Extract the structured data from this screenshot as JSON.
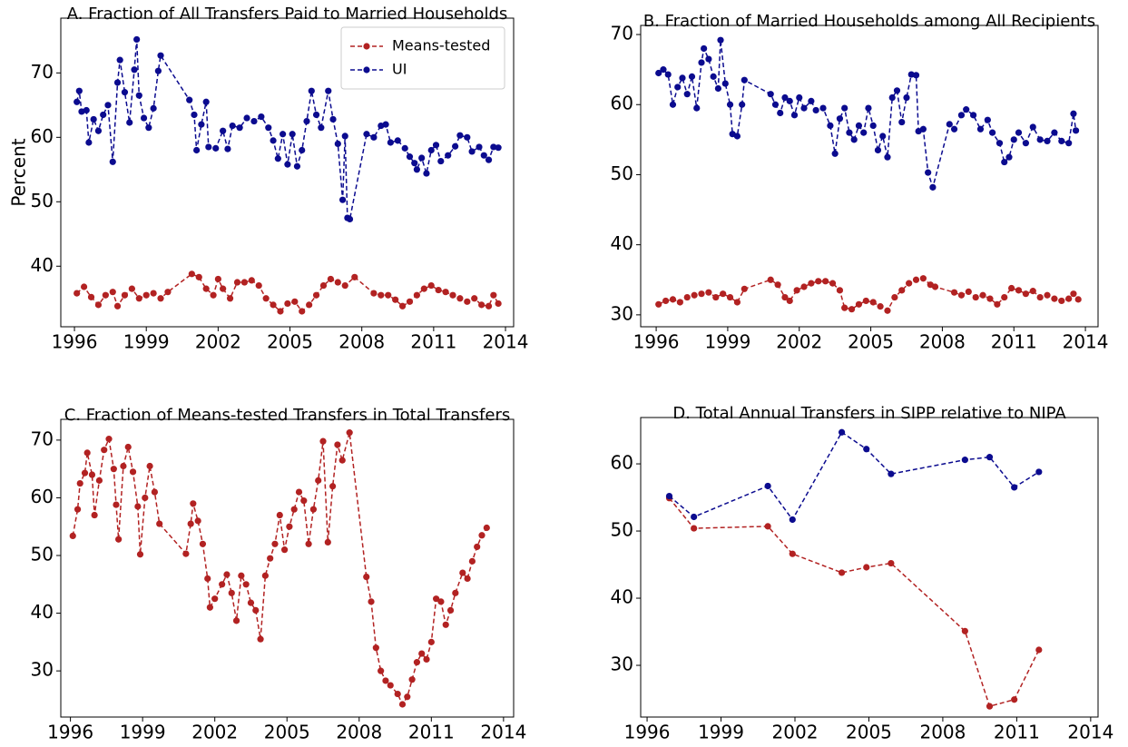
{
  "chart_data": [
    {
      "type": "line",
      "title": "A. Fraction of All Transfers Paid to Married Households",
      "y_label": "Percent",
      "xlim": [
        1995.43,
        2014.34
      ],
      "xticks": [
        1996,
        1999,
        2002,
        2005,
        2008,
        2011,
        2014
      ],
      "ylim": [
        30.6,
        78.5
      ],
      "yticks": [
        40,
        50,
        60,
        70
      ],
      "legend": "upper right",
      "line_style": "dashed",
      "markers": true,
      "series": [
        {
          "name": "Means-tested",
          "color": "#b22222",
          "x": [
            1996.1,
            1996.4,
            1996.7,
            1997.0,
            1997.3,
            1997.6,
            1997.8,
            1998.1,
            1998.4,
            1998.7,
            1999.0,
            1999.3,
            1999.6,
            1999.9,
            2000.9,
            2001.2,
            2001.5,
            2001.8,
            2002.0,
            2002.2,
            2002.5,
            2002.8,
            2003.1,
            2003.4,
            2003.7,
            2004.0,
            2004.3,
            2004.6,
            2004.9,
            2005.2,
            2005.5,
            2005.8,
            2006.1,
            2006.4,
            2006.7,
            2007.0,
            2007.3,
            2007.7,
            2008.5,
            2008.8,
            2009.1,
            2009.4,
            2009.7,
            2010.0,
            2010.3,
            2010.6,
            2010.9,
            2011.2,
            2011.5,
            2011.8,
            2012.1,
            2012.4,
            2012.7,
            2013.0,
            2013.3,
            2013.5,
            2013.7
          ],
          "values": [
            35.8,
            36.8,
            35.2,
            34,
            35.5,
            36,
            33.8,
            35.5,
            36.5,
            35,
            35.5,
            35.8,
            35,
            36,
            38.8,
            38.3,
            36.5,
            35.5,
            38,
            36.5,
            35,
            37.5,
            37.5,
            37.8,
            37,
            35,
            34,
            33,
            34.2,
            34.5,
            33,
            34,
            35.5,
            37,
            38,
            37.5,
            37,
            38.3,
            35.8,
            35.5,
            35.5,
            34.8,
            33.8,
            34.5,
            35.5,
            36.5,
            37,
            36.3,
            36,
            35.5,
            35,
            34.5,
            35,
            34,
            33.8,
            35.5,
            34.2
          ]
        },
        {
          "name": "UI",
          "color": "#0b0b8f",
          "x": [
            1996.1,
            1996.2,
            1996.3,
            1996.5,
            1996.6,
            1996.8,
            1997.0,
            1997.2,
            1997.4,
            1997.6,
            1997.8,
            1997.9,
            1998.1,
            1998.3,
            1998.5,
            1998.6,
            1998.7,
            1998.9,
            1999.1,
            1999.3,
            1999.5,
            1999.6,
            2000.8,
            2001.0,
            2001.1,
            2001.3,
            2001.5,
            2001.6,
            2001.9,
            2002.2,
            2002.4,
            2002.6,
            2002.9,
            2003.2,
            2003.5,
            2003.8,
            2004.1,
            2004.3,
            2004.5,
            2004.7,
            2004.9,
            2005.1,
            2005.3,
            2005.5,
            2005.7,
            2005.9,
            2006.1,
            2006.3,
            2006.6,
            2006.8,
            2007.0,
            2007.2,
            2007.3,
            2007.4,
            2007.5,
            2008.2,
            2008.5,
            2008.8,
            2009.0,
            2009.2,
            2009.5,
            2009.8,
            2010.0,
            2010.2,
            2010.3,
            2010.5,
            2010.7,
            2010.9,
            2011.1,
            2011.3,
            2011.6,
            2011.9,
            2012.1,
            2012.4,
            2012.6,
            2012.9,
            2013.1,
            2013.3,
            2013.5,
            2013.7
          ],
          "values": [
            65.5,
            67.2,
            64,
            64.2,
            59.2,
            62.8,
            61,
            63.5,
            65,
            56.2,
            68.5,
            72,
            67,
            62.3,
            70.5,
            75.2,
            66.5,
            63,
            61.5,
            64.5,
            70.3,
            72.7,
            65.8,
            63.5,
            58,
            62,
            65.5,
            58.5,
            58.3,
            61,
            58.2,
            61.8,
            61.5,
            63,
            62.5,
            63.2,
            61.5,
            59.5,
            56.7,
            60.5,
            55.8,
            60.5,
            55.5,
            58,
            62.5,
            67.2,
            63.5,
            61.5,
            67.2,
            62.8,
            59,
            50.3,
            60.2,
            47.5,
            47.3,
            60.5,
            60,
            61.8,
            62,
            59.2,
            59.5,
            58.3,
            57,
            56,
            55,
            56.8,
            54.4,
            58,
            58.8,
            56.3,
            57.2,
            58.6,
            60.3,
            60,
            57.8,
            58.5,
            57.2,
            56.5,
            58.5,
            58.4
          ]
        }
      ]
    },
    {
      "type": "line",
      "title": "B. Fraction of Married Households among All Recipients",
      "xlim": [
        1995.35,
        2014.53
      ],
      "xticks": [
        1996,
        1999,
        2002,
        2005,
        2008,
        2011,
        2014
      ],
      "ylim": [
        28.3,
        71.3
      ],
      "yticks": [
        30,
        40,
        50,
        60,
        70
      ],
      "line_style": "dashed",
      "markers": true,
      "series": [
        {
          "color": "#b22222",
          "x": [
            1996.1,
            1996.4,
            1996.7,
            1997.0,
            1997.3,
            1997.6,
            1997.9,
            1998.2,
            1998.5,
            1998.8,
            1999.1,
            1999.4,
            1999.7,
            2000.8,
            2001.1,
            2001.4,
            2001.6,
            2001.9,
            2002.2,
            2002.5,
            2002.8,
            2003.1,
            2003.4,
            2003.7,
            2003.9,
            2004.2,
            2004.5,
            2004.8,
            2005.1,
            2005.4,
            2005.7,
            2006.0,
            2006.3,
            2006.6,
            2006.9,
            2007.2,
            2007.5,
            2007.7,
            2008.5,
            2008.8,
            2009.1,
            2009.4,
            2009.7,
            2010.0,
            2010.3,
            2010.6,
            2010.9,
            2011.2,
            2011.5,
            2011.8,
            2012.1,
            2012.4,
            2012.7,
            2013.0,
            2013.3,
            2013.5,
            2013.7
          ],
          "values": [
            31.5,
            32,
            32.2,
            31.8,
            32.5,
            32.8,
            33,
            33.2,
            32.5,
            33,
            32.5,
            31.8,
            33.7,
            35,
            34.3,
            32.5,
            32,
            33.5,
            34,
            34.5,
            34.8,
            34.8,
            34.5,
            33.5,
            31,
            30.8,
            31.5,
            32,
            31.8,
            31.2,
            30.6,
            32.5,
            33.5,
            34.5,
            35,
            35.2,
            34.3,
            34,
            33.2,
            32.8,
            33.3,
            32.5,
            32.8,
            32.3,
            31.5,
            32.5,
            33.8,
            33.5,
            33,
            33.4,
            32.5,
            32.8,
            32.3,
            32,
            32.3,
            33,
            32.2
          ]
        },
        {
          "color": "#0b0b8f",
          "x": [
            1996.1,
            1996.3,
            1996.5,
            1996.7,
            1996.9,
            1997.1,
            1997.3,
            1997.5,
            1997.7,
            1997.9,
            1998.0,
            1998.2,
            1998.4,
            1998.6,
            1998.7,
            1998.9,
            1999.1,
            1999.2,
            1999.4,
            1999.6,
            1999.7,
            2000.8,
            2001.0,
            2001.2,
            2001.4,
            2001.6,
            2001.8,
            2002.0,
            2002.2,
            2002.5,
            2002.7,
            2003.0,
            2003.3,
            2003.5,
            2003.7,
            2003.9,
            2004.1,
            2004.3,
            2004.5,
            2004.7,
            2004.9,
            2005.1,
            2005.3,
            2005.5,
            2005.7,
            2005.9,
            2006.1,
            2006.3,
            2006.5,
            2006.7,
            2006.9,
            2007.0,
            2007.2,
            2007.4,
            2007.6,
            2008.3,
            2008.5,
            2008.8,
            2009.0,
            2009.3,
            2009.6,
            2009.9,
            2010.1,
            2010.4,
            2010.6,
            2010.8,
            2011.0,
            2011.2,
            2011.5,
            2011.8,
            2012.1,
            2012.4,
            2012.7,
            2013.0,
            2013.3,
            2013.5,
            2013.6
          ],
          "values": [
            64.5,
            65,
            64.3,
            60,
            62.5,
            63.8,
            61.5,
            64,
            59.5,
            66,
            68,
            66.5,
            64,
            62.3,
            69.2,
            63,
            60,
            55.8,
            55.5,
            60,
            63.5,
            61.5,
            60,
            58.8,
            61,
            60.5,
            58.5,
            61,
            59.5,
            60.5,
            59.2,
            59.5,
            57,
            53,
            58,
            59.5,
            56,
            55,
            57,
            56,
            59.5,
            57,
            53.5,
            55.5,
            52.5,
            61,
            62,
            57.5,
            61,
            64.3,
            64.2,
            56.2,
            56.5,
            50.3,
            48.2,
            57.2,
            56.5,
            58.5,
            59.3,
            58.5,
            56.5,
            57.8,
            56,
            54.5,
            51.8,
            52.5,
            55,
            56,
            54.5,
            56.8,
            55,
            54.8,
            56,
            54.8,
            54.5,
            58.7,
            56.3
          ]
        }
      ]
    },
    {
      "type": "line",
      "title": "C. Fraction of Means-tested Transfers in Total Transfers",
      "xlim": [
        1995.6,
        2014.42
      ],
      "xticks": [
        1996,
        1999,
        2002,
        2005,
        2008,
        2011,
        2014
      ],
      "ylim": [
        22.0,
        73.6
      ],
      "yticks": [
        30,
        40,
        50,
        60,
        70
      ],
      "line_style": "dashed",
      "markers": true,
      "series": [
        {
          "color": "#b22222",
          "x": [
            1996.1,
            1996.3,
            1996.4,
            1996.6,
            1996.7,
            1996.9,
            1997.0,
            1997.2,
            1997.4,
            1997.6,
            1997.8,
            1997.9,
            1998.0,
            1998.2,
            1998.4,
            1998.6,
            1998.8,
            1998.9,
            1999.1,
            1999.3,
            1999.5,
            1999.7,
            2000.8,
            2001.0,
            2001.1,
            2001.3,
            2001.5,
            2001.7,
            2001.8,
            2002.0,
            2002.3,
            2002.5,
            2002.7,
            2002.9,
            2003.1,
            2003.3,
            2003.5,
            2003.7,
            2003.9,
            2004.1,
            2004.3,
            2004.5,
            2004.7,
            2004.9,
            2005.1,
            2005.3,
            2005.5,
            2005.7,
            2005.9,
            2006.1,
            2006.3,
            2006.5,
            2006.7,
            2006.9,
            2007.1,
            2007.3,
            2007.6,
            2008.3,
            2008.5,
            2008.7,
            2008.9,
            2009.1,
            2009.3,
            2009.6,
            2009.8,
            2010.0,
            2010.2,
            2010.4,
            2010.6,
            2010.8,
            2011.0,
            2011.2,
            2011.4,
            2011.6,
            2011.8,
            2012.0,
            2012.3,
            2012.5,
            2012.7,
            2012.9,
            2013.1,
            2013.3
          ],
          "values": [
            53.4,
            58,
            62.5,
            64.3,
            67.8,
            64,
            57,
            63,
            68.3,
            70.2,
            65,
            58.8,
            52.8,
            65.5,
            68.8,
            64.5,
            58.5,
            50.2,
            60,
            65.5,
            61,
            55.5,
            50.3,
            55.5,
            59,
            56,
            52,
            46,
            41,
            42.5,
            45,
            46.7,
            43.5,
            38.7,
            46.5,
            45,
            41.8,
            40.5,
            35.5,
            46.5,
            49.5,
            52,
            57,
            51,
            55,
            58,
            61,
            59.5,
            52,
            58,
            63,
            69.8,
            52.3,
            62,
            69.2,
            66.5,
            71.3,
            46.3,
            42,
            34,
            30,
            28.3,
            27.5,
            26,
            24.2,
            25.5,
            28.5,
            31.5,
            33,
            32,
            35,
            42.5,
            42,
            38,
            40.5,
            43.5,
            47,
            46,
            49,
            51.5,
            53.5,
            54.8
          ]
        }
      ]
    },
    {
      "type": "line",
      "title": "D. Total Annual Transfers in SIPP relative to NIPA",
      "xlim": [
        1995.74,
        2014.3
      ],
      "xticks": [
        1996,
        1999,
        2002,
        2005,
        2008,
        2011,
        2014
      ],
      "ylim": [
        22.3,
        66.9
      ],
      "yticks": [
        30,
        40,
        50,
        60
      ],
      "line_style": "dashed",
      "markers": true,
      "series": [
        {
          "color": "#b22222",
          "x": [
            1996.9,
            1997.9,
            2000.9,
            2001.9,
            2003.9,
            2004.9,
            2005.9,
            2008.9,
            2009.9,
            2010.9,
            2011.9
          ],
          "values": [
            54.9,
            50.4,
            50.7,
            46.6,
            43.8,
            44.6,
            45.2,
            35.1,
            23.9,
            24.9,
            32.3
          ]
        },
        {
          "color": "#0b0b8f",
          "x": [
            1996.9,
            1997.9,
            2000.9,
            2001.9,
            2003.9,
            2004.9,
            2005.9,
            2008.9,
            2009.9,
            2010.9,
            2011.9
          ],
          "values": [
            55.2,
            52.1,
            56.7,
            51.7,
            64.7,
            62.2,
            58.5,
            60.6,
            61,
            56.5,
            58.8
          ]
        }
      ]
    }
  ]
}
